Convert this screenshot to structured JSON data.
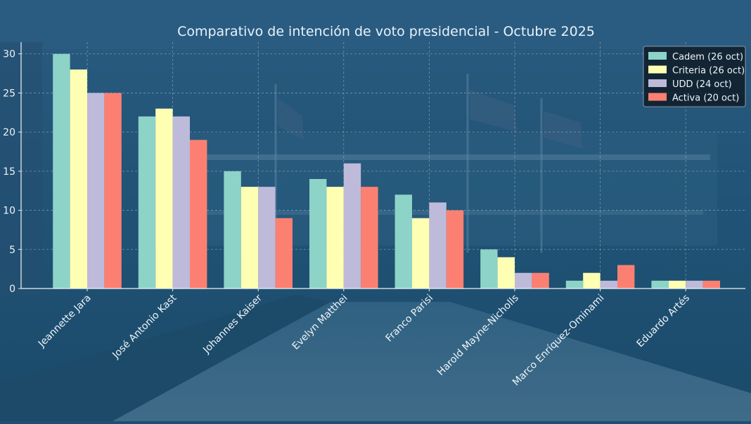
{
  "chart_data": {
    "type": "bar",
    "title": "Comparativo de intención de voto presidencial - Octubre 2025",
    "xlabel": "",
    "ylabel": "",
    "ylim": [
      0,
      31.5
    ],
    "yticks": [
      0,
      5,
      10,
      15,
      20,
      25,
      30
    ],
    "grid": true,
    "legend_position": "top-right",
    "categories": [
      "Jeannette Jara",
      "José Antonio Kast",
      "Johannes Kaiser",
      "Evelyn Matthei",
      "Franco Parisi",
      "Harold Mayne-Nicholls",
      "Marco Enríquez-Ominami",
      "Eduardo Artés"
    ],
    "series": [
      {
        "name": "Cadem (26 oct)",
        "color": "#8dd3c7",
        "values": [
          30,
          22,
          15,
          14,
          12,
          5,
          1,
          1
        ]
      },
      {
        "name": "Criteria (26 oct)",
        "color": "#ffffb3",
        "values": [
          28,
          23,
          13,
          13,
          9,
          4,
          2,
          1
        ]
      },
      {
        "name": "UDD (24 oct)",
        "color": "#bebada",
        "values": [
          25,
          22,
          13,
          16,
          11,
          2,
          1,
          1
        ]
      },
      {
        "name": "Activa (20 oct)",
        "color": "#fb8072",
        "values": [
          25,
          19,
          9,
          13,
          10,
          2,
          3,
          1
        ]
      }
    ]
  }
}
